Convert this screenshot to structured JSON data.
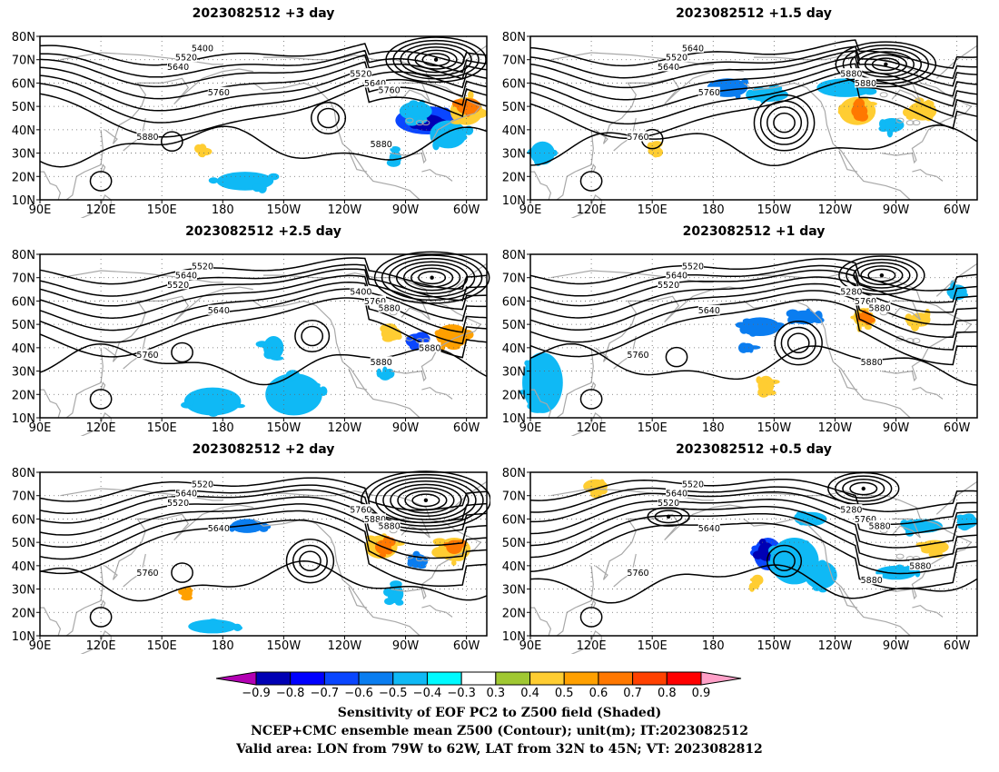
{
  "chart_data": {
    "type": "map-contour",
    "lat_ticks": [
      "80N",
      "70N",
      "60N",
      "50N",
      "40N",
      "30N",
      "20N",
      "10N"
    ],
    "lon_ticks": [
      "90E",
      "120E",
      "150E",
      "180",
      "150W",
      "120W",
      "90W",
      "60W"
    ],
    "panels": [
      {
        "title": "2023082512  +3 day",
        "contour_labels": [
          "5400",
          "5520",
          "5640",
          "5760",
          "5880",
          "5520",
          "5640",
          "5760",
          "5880"
        ],
        "lows": [
          {
            "lon": 285,
            "lat": 70,
            "n": 6
          }
        ],
        "highs": [
          {
            "lon": 232,
            "lat": 45,
            "n": 2
          },
          {
            "lon": 155,
            "lat": 35,
            "n": 1
          },
          {
            "lon": 120,
            "lat": 18,
            "n": 1
          }
        ],
        "shading": [
          {
            "lon": 281,
            "lat": 44,
            "rx": 16,
            "ry": 6,
            "v": -0.6
          },
          {
            "lon": 281,
            "lat": 43,
            "rx": 8,
            "ry": 3.5,
            "v": -0.8
          },
          {
            "lon": 275,
            "lat": 48,
            "rx": 8,
            "ry": 4,
            "v": -0.4
          },
          {
            "lon": 291,
            "lat": 38,
            "rx": 9,
            "ry": 6,
            "v": -0.4
          },
          {
            "lon": 300,
            "lat": 48,
            "rx": 8,
            "ry": 6,
            "v": 0.4
          },
          {
            "lon": 301,
            "lat": 50,
            "rx": 6,
            "ry": 3.5,
            "v": 0.6
          },
          {
            "lon": 265,
            "lat": 28,
            "rx": 3,
            "ry": 3,
            "v": -0.4
          },
          {
            "lon": 191,
            "lat": 18,
            "rx": 14,
            "ry": 4,
            "v": -0.4
          },
          {
            "lon": 170,
            "lat": 32,
            "rx": 2,
            "ry": 2,
            "v": 0.4
          }
        ]
      },
      {
        "title": "2023082512  +1.5 day",
        "contour_labels": [
          "5640",
          "5520",
          "5640",
          "5760",
          "5760",
          "5880",
          "5880"
        ],
        "lows": [
          {
            "lon": 265,
            "lat": 68,
            "n": 6
          }
        ],
        "highs": [
          {
            "lon": 215,
            "lat": 43,
            "n": 4
          },
          {
            "lon": 150,
            "lat": 36,
            "n": 1
          },
          {
            "lon": 120,
            "lat": 18,
            "n": 1
          }
        ],
        "shading": [
          {
            "lon": 187,
            "lat": 58,
            "rx": 10,
            "ry": 4,
            "v": -0.5
          },
          {
            "lon": 207,
            "lat": 55,
            "rx": 10,
            "ry": 3,
            "v": -0.4
          },
          {
            "lon": 245,
            "lat": 58,
            "rx": 14,
            "ry": 4,
            "v": -0.4
          },
          {
            "lon": 251,
            "lat": 48,
            "rx": 9,
            "ry": 6,
            "v": 0.4
          },
          {
            "lon": 252,
            "lat": 48,
            "rx": 4,
            "ry": 3,
            "v": 0.6
          },
          {
            "lon": 283,
            "lat": 48,
            "rx": 7,
            "ry": 4,
            "v": 0.4
          },
          {
            "lon": 96,
            "lat": 30,
            "rx": 6,
            "ry": 5,
            "v": -0.4
          },
          {
            "lon": 151,
            "lat": 32,
            "rx": 3,
            "ry": 2,
            "v": 0.4
          },
          {
            "lon": 268,
            "lat": 42,
            "rx": 6,
            "ry": 3,
            "v": -0.4
          }
        ]
      },
      {
        "title": "2023082512  +2.5 day",
        "contour_labels": [
          "5520",
          "5640",
          "5520",
          "5640",
          "5760",
          "5400",
          "5760",
          "5880",
          "5880",
          "5880"
        ],
        "lows": [
          {
            "lon": 283,
            "lat": 70,
            "n": 7
          }
        ],
        "highs": [
          {
            "lon": 224,
            "lat": 45,
            "n": 2
          },
          {
            "lon": 160,
            "lat": 38,
            "n": 1
          },
          {
            "lon": 120,
            "lat": 18,
            "n": 1
          }
        ],
        "shading": [
          {
            "lon": 275,
            "lat": 43,
            "rx": 5,
            "ry": 3,
            "v": -0.6
          },
          {
            "lon": 293,
            "lat": 45,
            "rx": 8,
            "ry": 5,
            "v": 0.5
          },
          {
            "lon": 263,
            "lat": 46,
            "rx": 5,
            "ry": 3,
            "v": 0.4
          },
          {
            "lon": 205,
            "lat": 40,
            "rx": 5,
            "ry": 5,
            "v": -0.4
          },
          {
            "lon": 215,
            "lat": 20,
            "rx": 14,
            "ry": 9,
            "v": -0.4
          },
          {
            "lon": 175,
            "lat": 17,
            "rx": 14,
            "ry": 6,
            "v": -0.4
          },
          {
            "lon": 260,
            "lat": 28,
            "rx": 3,
            "ry": 2,
            "v": -0.4
          }
        ]
      },
      {
        "title": "2023082512  +1 day",
        "contour_labels": [
          "5520",
          "5640",
          "5520",
          "5640",
          "5760",
          "5280",
          "5760",
          "5880",
          "5880"
        ],
        "lows": [
          {
            "lon": 263,
            "lat": 71,
            "n": 5
          }
        ],
        "highs": [
          {
            "lon": 222,
            "lat": 42,
            "n": 3
          },
          {
            "lon": 162,
            "lat": 36,
            "n": 1
          },
          {
            "lon": 120,
            "lat": 18,
            "n": 1
          }
        ],
        "shading": [
          {
            "lon": 203,
            "lat": 49,
            "rx": 10,
            "ry": 4,
            "v": -0.5
          },
          {
            "lon": 225,
            "lat": 53,
            "rx": 7,
            "ry": 3,
            "v": -0.5
          },
          {
            "lon": 197,
            "lat": 40,
            "rx": 3,
            "ry": 2,
            "v": -0.5
          },
          {
            "lon": 254,
            "lat": 53,
            "rx": 5,
            "ry": 4,
            "v": 0.4
          },
          {
            "lon": 254,
            "lat": 53,
            "rx": 3,
            "ry": 2,
            "v": 0.6
          },
          {
            "lon": 282,
            "lat": 52,
            "rx": 5,
            "ry": 3,
            "v": 0.4
          },
          {
            "lon": 96,
            "lat": 25,
            "rx": 10,
            "ry": 13,
            "v": -0.4
          },
          {
            "lon": 206,
            "lat": 24,
            "rx": 4,
            "ry": 4,
            "v": 0.4
          },
          {
            "lon": 300,
            "lat": 64,
            "rx": 5,
            "ry": 3,
            "v": -0.4
          }
        ]
      },
      {
        "title": "2023082512  +2 day",
        "contour_labels": [
          "5520",
          "5640",
          "5520",
          "5640",
          "5760",
          "5760",
          "5880",
          "5880"
        ],
        "lows": [
          {
            "lon": 280,
            "lat": 68,
            "n": 8
          }
        ],
        "highs": [
          {
            "lon": 223,
            "lat": 42,
            "n": 3
          },
          {
            "lon": 160,
            "lat": 37,
            "n": 1
          },
          {
            "lon": 120,
            "lat": 18,
            "n": 1
          }
        ],
        "shading": [
          {
            "lon": 192,
            "lat": 57,
            "rx": 8,
            "ry": 3,
            "v": -0.5
          },
          {
            "lon": 258,
            "lat": 48,
            "rx": 8,
            "ry": 5,
            "v": 0.4
          },
          {
            "lon": 259,
            "lat": 48,
            "rx": 4,
            "ry": 3,
            "v": 0.6
          },
          {
            "lon": 276,
            "lat": 42,
            "rx": 5,
            "ry": 3,
            "v": -0.5
          },
          {
            "lon": 294,
            "lat": 47,
            "rx": 8,
            "ry": 5,
            "v": 0.4
          },
          {
            "lon": 294,
            "lat": 48,
            "rx": 4,
            "ry": 3,
            "v": 0.6
          },
          {
            "lon": 265,
            "lat": 28,
            "rx": 4,
            "ry": 4,
            "v": -0.4
          },
          {
            "lon": 175,
            "lat": 14,
            "rx": 12,
            "ry": 3,
            "v": -0.4
          },
          {
            "lon": 163,
            "lat": 28,
            "rx": 2,
            "ry": 2,
            "v": 0.5
          }
        ]
      },
      {
        "title": "2023082512  +0.5 day",
        "contour_labels": [
          "5520",
          "5640",
          "5520",
          "5640",
          "5760",
          "5280",
          "5760",
          "5880",
          "5880",
          "5880"
        ],
        "lows": [
          {
            "lon": 254,
            "lat": 73,
            "n": 4
          },
          {
            "lon": 158,
            "lat": 61,
            "n": 2
          }
        ],
        "highs": [
          {
            "lon": 215,
            "lat": 42,
            "n": 2
          },
          {
            "lon": 120,
            "lat": 18,
            "n": 1
          }
        ],
        "shading": [
          {
            "lon": 207,
            "lat": 45,
            "rx": 7,
            "ry": 7,
            "v": -0.6
          },
          {
            "lon": 206,
            "lat": 46,
            "rx": 4,
            "ry": 4,
            "v": -0.8
          },
          {
            "lon": 220,
            "lat": 42,
            "rx": 12,
            "ry": 10,
            "v": -0.4
          },
          {
            "lon": 233,
            "lat": 36,
            "rx": 8,
            "ry": 6,
            "v": -0.4
          },
          {
            "lon": 228,
            "lat": 60,
            "rx": 8,
            "ry": 3,
            "v": -0.4
          },
          {
            "lon": 283,
            "lat": 57,
            "rx": 10,
            "ry": 3,
            "v": -0.4
          },
          {
            "lon": 289,
            "lat": 48,
            "rx": 7,
            "ry": 3,
            "v": 0.4
          },
          {
            "lon": 270,
            "lat": 37,
            "rx": 10,
            "ry": 3,
            "v": -0.4
          },
          {
            "lon": 201,
            "lat": 32,
            "rx": 2,
            "ry": 2,
            "v": 0.4
          },
          {
            "lon": 122,
            "lat": 74,
            "rx": 6,
            "ry": 3,
            "v": 0.4
          },
          {
            "lon": 305,
            "lat": 59,
            "rx": 5,
            "ry": 3,
            "v": -0.4
          }
        ]
      }
    ],
    "colorbar": {
      "labels": [
        "−0.9",
        "−0.8",
        "−0.7",
        "−0.6",
        "−0.5",
        "−0.4",
        "−0.3",
        "0.3",
        "0.4",
        "0.5",
        "0.6",
        "0.7",
        "0.8",
        "0.9"
      ],
      "colors": [
        "#b300b3",
        "#0000b4",
        "#0000ff",
        "#0a46ff",
        "#0a7df0",
        "#0fb9f5",
        "#00faff",
        "#ffffff",
        "#a0c832",
        "#ffcd32",
        "#ffa000",
        "#ff7800",
        "#ff4100",
        "#ff0000",
        "#ffa0c8"
      ]
    }
  },
  "caption": {
    "line1": "Sensitivity of EOF PC2 to Z500 field (Shaded)",
    "line2": "NCEP+CMC ensemble mean Z500 (Contour); unit(m); IT:2023082512",
    "line3": "Valid area: LON from 79W to 62W, LAT from 32N to 45N; VT: 2023082812"
  }
}
